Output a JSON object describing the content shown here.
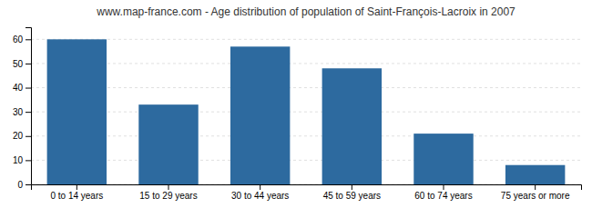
{
  "chart_data": {
    "type": "bar",
    "title": "www.map-france.com - Age distribution of population of Saint-François-Lacroix in 2007",
    "categories": [
      "0 to 14 years",
      "15 to 29 years",
      "30 to 44 years",
      "45 to 59 years",
      "60 to 74 years",
      "75 years or more"
    ],
    "values": [
      60,
      33,
      57,
      48,
      21,
      8
    ],
    "color": "#2d6a9f",
    "ylim": [
      0,
      65
    ],
    "yticks": [
      0,
      10,
      20,
      30,
      40,
      50,
      60
    ],
    "grid": true
  }
}
